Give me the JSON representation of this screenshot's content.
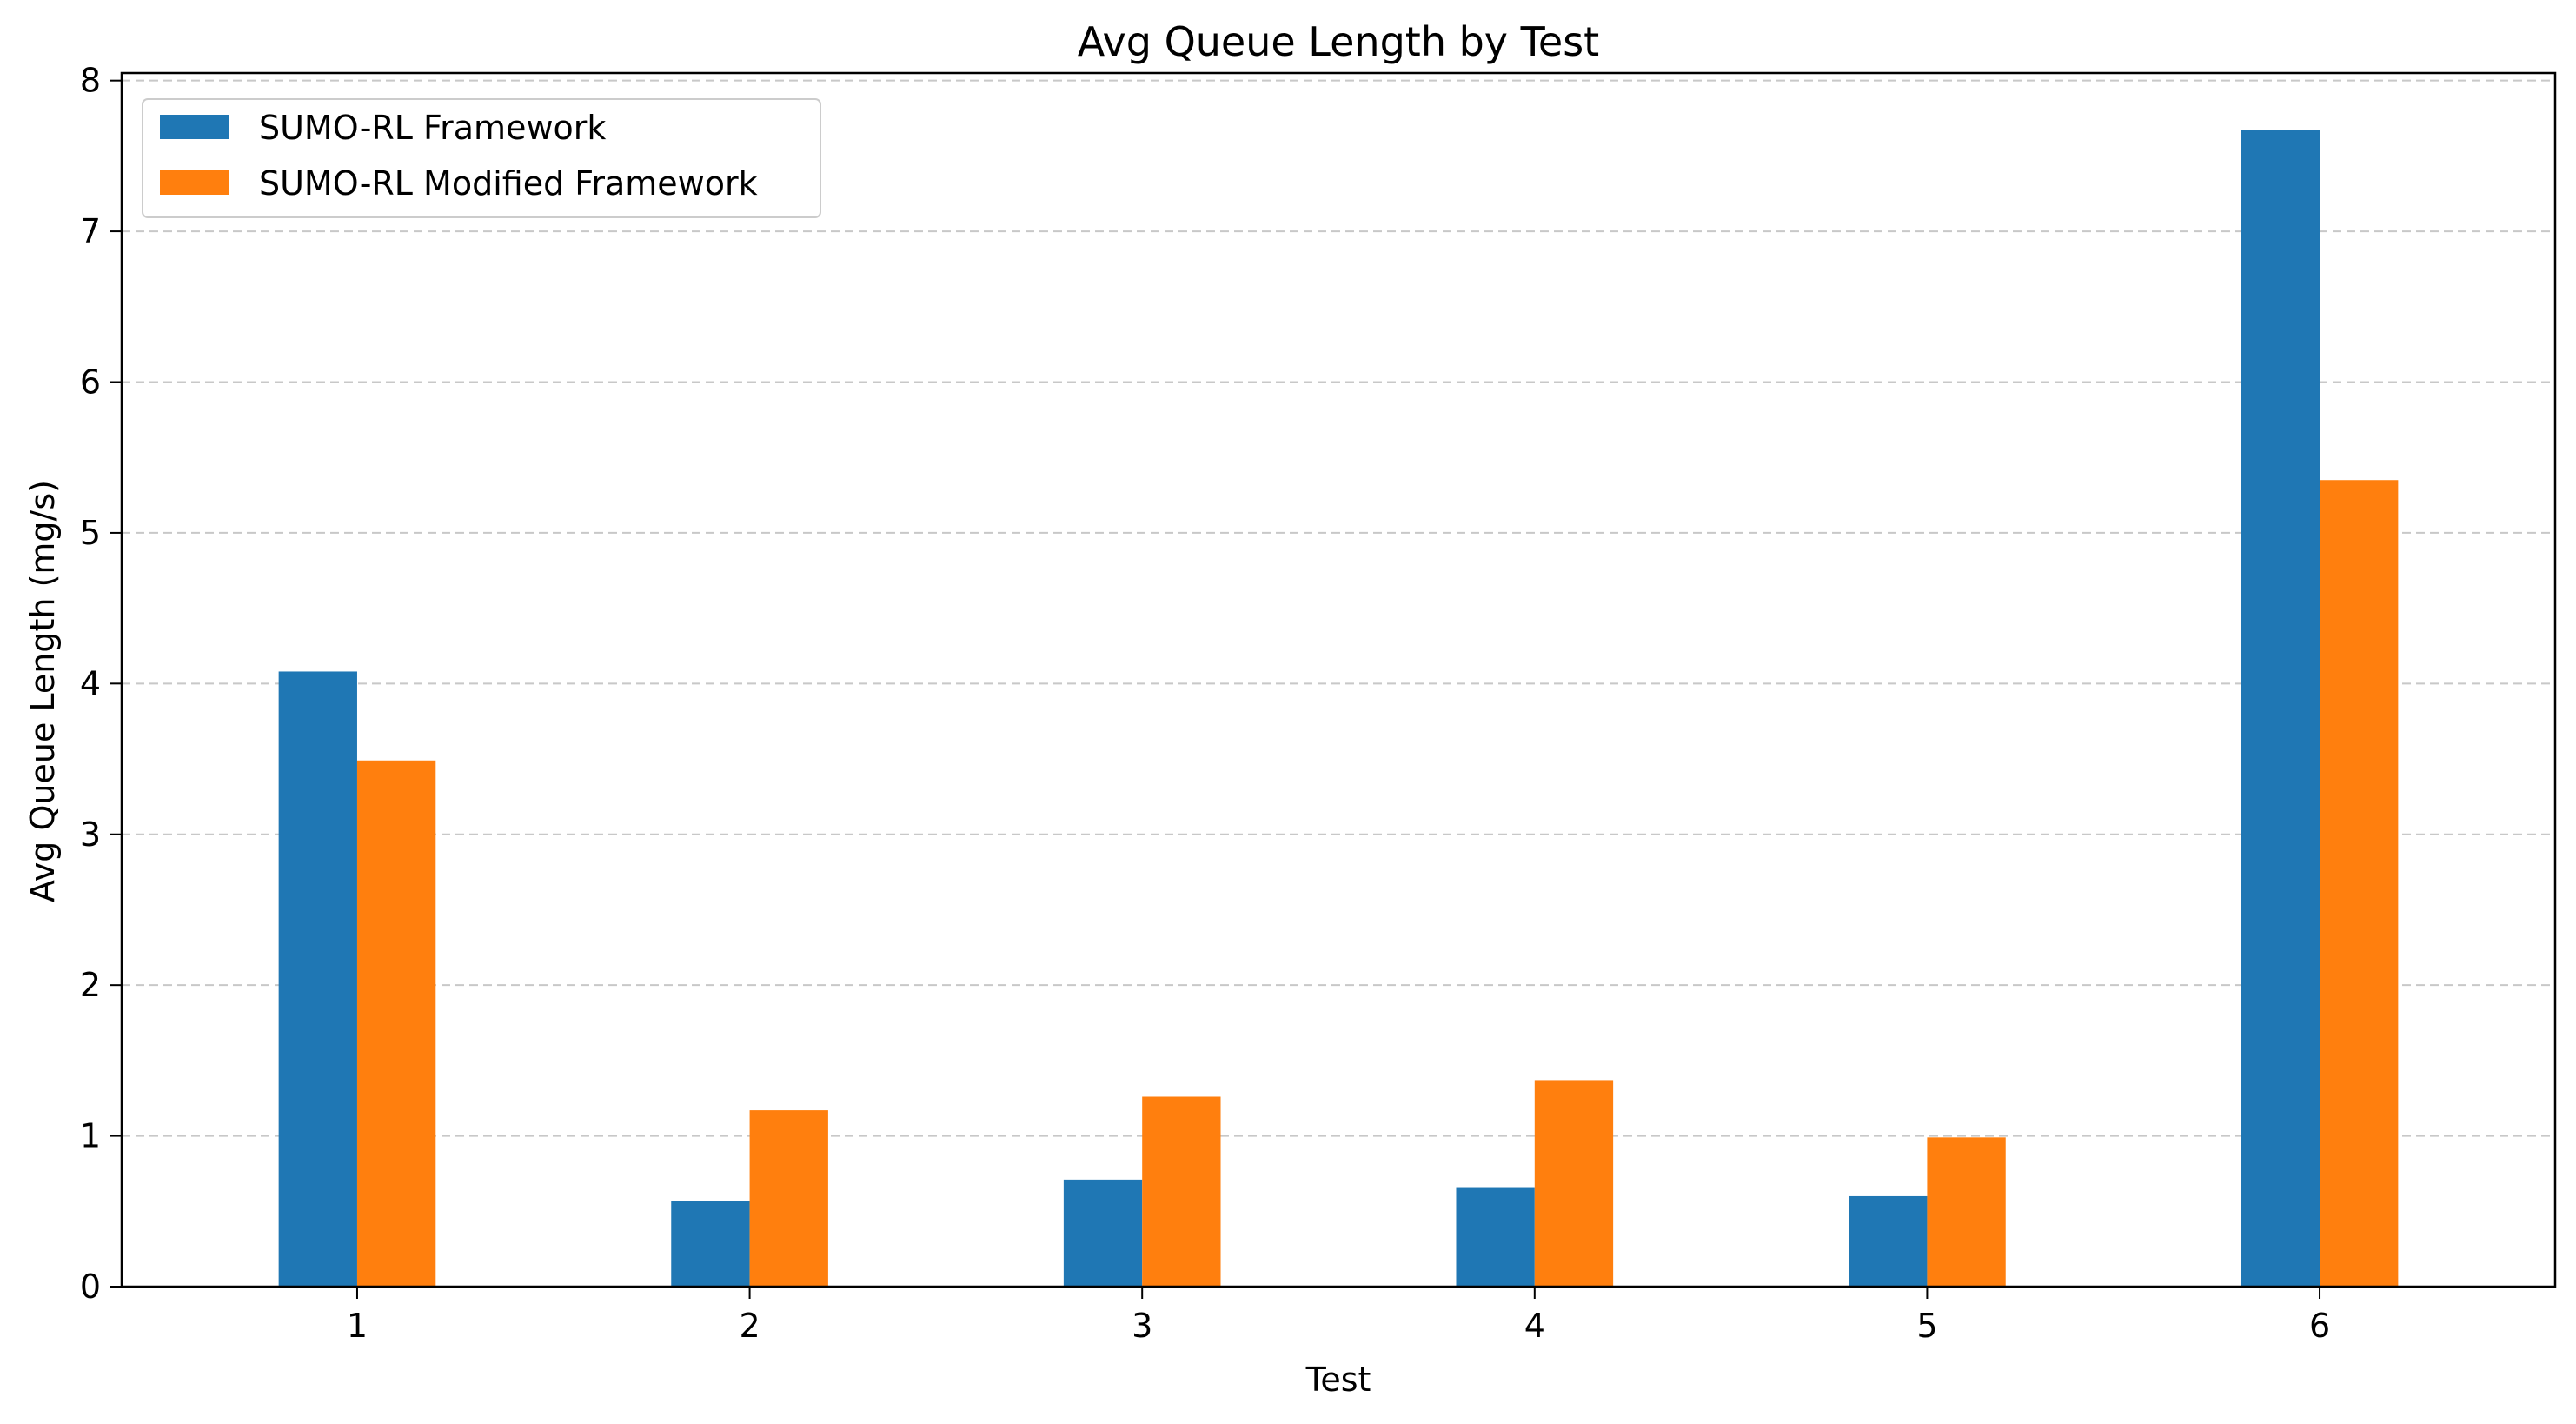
{
  "chart_data": {
    "type": "bar",
    "title": "Avg Queue Length by Test",
    "xlabel": "Test",
    "ylabel": "Avg Queue Length (mg/s)",
    "categories": [
      "1",
      "2",
      "3",
      "4",
      "5",
      "6"
    ],
    "series": [
      {
        "name": "SUMO-RL Framework",
        "color": "#1f77b4",
        "values": [
          4.08,
          0.57,
          0.71,
          0.66,
          0.6,
          7.67
        ]
      },
      {
        "name": "SUMO-RL Modified Framework",
        "color": "#ff7f0e",
        "values": [
          3.49,
          1.17,
          1.26,
          1.37,
          0.99,
          5.35
        ]
      }
    ],
    "ylim": [
      0,
      8
    ],
    "yticks": [
      "0",
      "1",
      "2",
      "3",
      "4",
      "5",
      "6",
      "7",
      "8"
    ],
    "grid": "horizontal dashed",
    "legend_position": "top-left"
  }
}
